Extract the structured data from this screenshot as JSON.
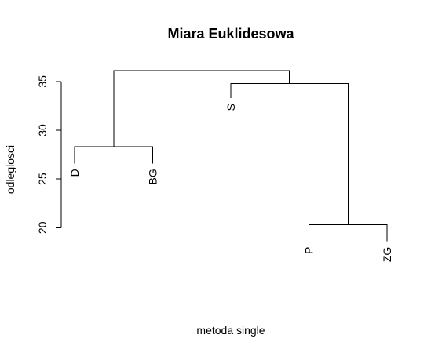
{
  "chart_data": {
    "type": "dendrogram",
    "title": "Miara Euklidesowa",
    "xlabel": "metoda single",
    "ylabel": "odleglosci",
    "ylim": [
      15.6,
      37.0
    ],
    "yticks": [
      20,
      25,
      30,
      35
    ],
    "grid": false,
    "leaves": [
      "D",
      "BG",
      "S",
      "P",
      "ZG"
    ],
    "leaf_heights": [
      26.6,
      26.6,
      33.3,
      18.6,
      18.6
    ],
    "merges": [
      {
        "left": "D",
        "right": "BG",
        "height": 28.3
      },
      {
        "left": "P",
        "right": "ZG",
        "height": 20.3
      },
      {
        "left": "S",
        "right": "P+ZG",
        "height": 34.8
      },
      {
        "left": "D+BG",
        "right": "S+P+ZG",
        "height": 36.1
      }
    ]
  }
}
